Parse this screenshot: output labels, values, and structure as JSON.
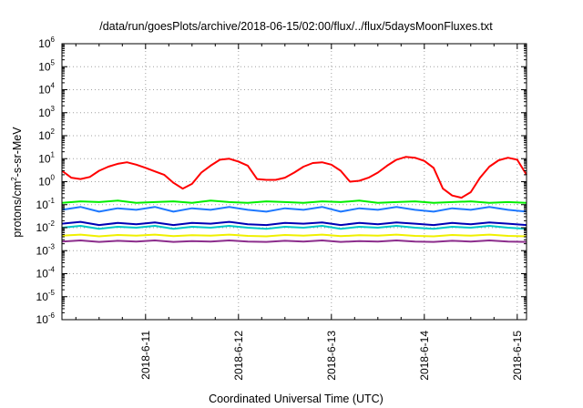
{
  "chart_data": {
    "type": "line",
    "title": "/data/run/goesPlots/archive/2018-06-15/02:00/flux/../flux/5daysMoonFluxes.txt",
    "xlabel": "Coordinated Universal Time (UTC)",
    "ylabel": {
      "pre": "protons/cm",
      "sup": "2",
      "post": "-s-sr-MeV"
    },
    "yscale": "log",
    "ylim": [
      1e-06,
      1000000.0
    ],
    "xlim": [
      10.1,
      15.1
    ],
    "grid": true,
    "y_ticks": [
      {
        "value": -6,
        "base": "10",
        "exp": "-6"
      },
      {
        "value": -5,
        "base": "10",
        "exp": "-5"
      },
      {
        "value": -4,
        "base": "10",
        "exp": "-4"
      },
      {
        "value": -3,
        "base": "10",
        "exp": "-3"
      },
      {
        "value": -2,
        "base": "10",
        "exp": "-2"
      },
      {
        "value": -1,
        "base": "10",
        "exp": "-1"
      },
      {
        "value": 0,
        "base": "10",
        "exp": "0"
      },
      {
        "value": 1,
        "base": "10",
        "exp": "1"
      },
      {
        "value": 2,
        "base": "10",
        "exp": "2"
      },
      {
        "value": 3,
        "base": "10",
        "exp": "3"
      },
      {
        "value": 4,
        "base": "10",
        "exp": "4"
      },
      {
        "value": 5,
        "base": "10",
        "exp": "5"
      },
      {
        "value": 6,
        "base": "10",
        "exp": "6"
      }
    ],
    "x_ticks": [
      {
        "value": 11,
        "label": "2018-6-11"
      },
      {
        "value": 12,
        "label": "2018-6-12"
      },
      {
        "value": 13,
        "label": "2018-6-13"
      },
      {
        "value": 14,
        "label": "2018-6-14"
      },
      {
        "value": 15,
        "label": "2018-6-15"
      }
    ],
    "series": [
      {
        "color": "#ff0000",
        "x": [
          10.1,
          10.2,
          10.3,
          10.4,
          10.5,
          10.6,
          10.7,
          10.8,
          10.9,
          11.0,
          11.1,
          11.2,
          11.3,
          11.4,
          11.5,
          11.6,
          11.7,
          11.8,
          11.9,
          12.0,
          12.1,
          12.2,
          12.3,
          12.4,
          12.5,
          12.6,
          12.7,
          12.8,
          12.9,
          13.0,
          13.1,
          13.2,
          13.3,
          13.4,
          13.5,
          13.6,
          13.7,
          13.8,
          13.9,
          14.0,
          14.1,
          14.2,
          14.3,
          14.4,
          14.5,
          14.6,
          14.7,
          14.8,
          14.9,
          15.0,
          15.1
        ],
        "y": [
          3.0,
          1.5,
          1.3,
          1.6,
          3.0,
          4.5,
          6.0,
          7.0,
          5.5,
          4.0,
          2.8,
          2.0,
          0.9,
          0.5,
          0.8,
          2.5,
          5.0,
          9.0,
          10.0,
          7.5,
          5.0,
          1.3,
          1.2,
          1.2,
          1.5,
          2.5,
          4.5,
          6.5,
          7.0,
          5.5,
          3.0,
          1.0,
          1.1,
          1.5,
          2.5,
          5.0,
          9.0,
          12.0,
          11.0,
          8.0,
          4.0,
          0.5,
          0.25,
          0.2,
          0.35,
          1.5,
          4.5,
          8.5,
          11.0,
          9.0,
          2.0
        ]
      },
      {
        "color": "#00ee00",
        "x": [
          10.1,
          10.3,
          10.5,
          10.7,
          10.9,
          11.1,
          11.3,
          11.5,
          11.7,
          11.9,
          12.1,
          12.3,
          12.5,
          12.7,
          12.9,
          13.1,
          13.3,
          13.5,
          13.7,
          13.9,
          14.1,
          14.3,
          14.5,
          14.7,
          14.9,
          15.1
        ],
        "y": [
          0.12,
          0.14,
          0.13,
          0.15,
          0.12,
          0.13,
          0.14,
          0.12,
          0.15,
          0.13,
          0.12,
          0.14,
          0.13,
          0.12,
          0.14,
          0.13,
          0.15,
          0.12,
          0.13,
          0.14,
          0.12,
          0.13,
          0.14,
          0.12,
          0.13,
          0.12
        ]
      },
      {
        "color": "#1e78ff",
        "x": [
          10.1,
          10.3,
          10.5,
          10.7,
          10.9,
          11.1,
          11.3,
          11.5,
          11.7,
          11.9,
          12.1,
          12.3,
          12.5,
          12.7,
          12.9,
          13.1,
          13.3,
          13.5,
          13.7,
          13.9,
          14.1,
          14.3,
          14.5,
          14.7,
          14.9,
          15.1
        ],
        "y": [
          0.06,
          0.08,
          0.05,
          0.07,
          0.06,
          0.08,
          0.05,
          0.07,
          0.06,
          0.08,
          0.06,
          0.05,
          0.07,
          0.06,
          0.08,
          0.05,
          0.07,
          0.06,
          0.08,
          0.06,
          0.05,
          0.07,
          0.06,
          0.08,
          0.06,
          0.05
        ]
      },
      {
        "color": "#00c8c8",
        "x": [
          10.1,
          10.3,
          10.5,
          10.7,
          10.9,
          11.1,
          11.3,
          11.5,
          11.7,
          11.9,
          12.1,
          12.3,
          12.5,
          12.7,
          12.9,
          13.1,
          13.3,
          13.5,
          13.7,
          13.9,
          14.1,
          14.3,
          14.5,
          14.7,
          14.9,
          15.1
        ],
        "y": [
          0.01,
          0.012,
          0.009,
          0.011,
          0.01,
          0.012,
          0.009,
          0.011,
          0.01,
          0.012,
          0.01,
          0.009,
          0.011,
          0.01,
          0.012,
          0.009,
          0.011,
          0.01,
          0.012,
          0.01,
          0.009,
          0.011,
          0.01,
          0.012,
          0.01,
          0.009
        ]
      },
      {
        "color": "#0000b4",
        "x": [
          10.1,
          10.3,
          10.5,
          10.7,
          10.9,
          11.1,
          11.3,
          11.5,
          11.7,
          11.9,
          12.1,
          12.3,
          12.5,
          12.7,
          12.9,
          13.1,
          13.3,
          13.5,
          13.7,
          13.9,
          14.1,
          14.3,
          14.5,
          14.7,
          14.9,
          15.1
        ],
        "y": [
          0.015,
          0.018,
          0.013,
          0.016,
          0.014,
          0.017,
          0.013,
          0.016,
          0.015,
          0.018,
          0.014,
          0.013,
          0.016,
          0.015,
          0.017,
          0.013,
          0.016,
          0.014,
          0.017,
          0.015,
          0.013,
          0.016,
          0.014,
          0.017,
          0.015,
          0.013
        ]
      },
      {
        "color": "#f0f000",
        "x": [
          10.1,
          10.3,
          10.5,
          10.7,
          10.9,
          11.1,
          11.3,
          11.5,
          11.7,
          11.9,
          12.1,
          12.3,
          12.5,
          12.7,
          12.9,
          13.1,
          13.3,
          13.5,
          13.7,
          13.9,
          14.1,
          14.3,
          14.5,
          14.7,
          14.9,
          15.1
        ],
        "y": [
          0.0045,
          0.005,
          0.0042,
          0.0048,
          0.0045,
          0.005,
          0.0043,
          0.0047,
          0.0045,
          0.005,
          0.0044,
          0.0042,
          0.0048,
          0.0045,
          0.005,
          0.0043,
          0.0047,
          0.0045,
          0.005,
          0.0044,
          0.0042,
          0.0048,
          0.0045,
          0.005,
          0.0044,
          0.0042
        ]
      },
      {
        "color": "#8c2d8c",
        "x": [
          10.1,
          10.3,
          10.5,
          10.7,
          10.9,
          11.1,
          11.3,
          11.5,
          11.7,
          11.9,
          12.1,
          12.3,
          12.5,
          12.7,
          12.9,
          13.1,
          13.3,
          13.5,
          13.7,
          13.9,
          14.1,
          14.3,
          14.5,
          14.7,
          14.9,
          15.1
        ],
        "y": [
          0.0025,
          0.0028,
          0.0024,
          0.0027,
          0.0025,
          0.0028,
          0.0024,
          0.0026,
          0.0025,
          0.0028,
          0.0025,
          0.0024,
          0.0027,
          0.0025,
          0.0028,
          0.0024,
          0.0026,
          0.0025,
          0.0028,
          0.0025,
          0.0024,
          0.0027,
          0.0025,
          0.0028,
          0.0025,
          0.0024
        ]
      }
    ]
  }
}
